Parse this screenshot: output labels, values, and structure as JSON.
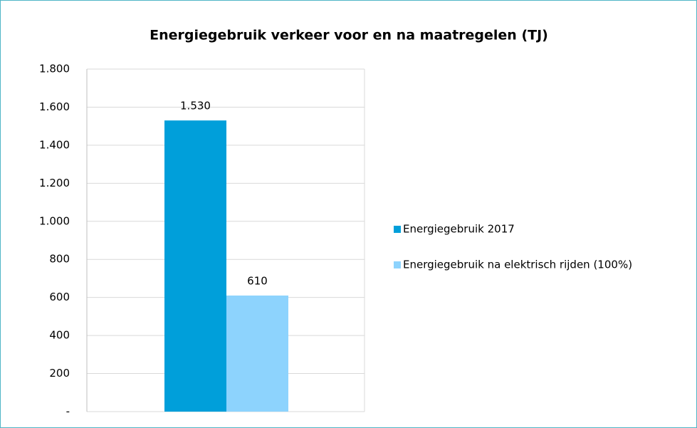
{
  "chart_data": {
    "type": "bar",
    "title": "Energiegebruik verkeer voor en na maatregelen (TJ)",
    "categories": [
      null
    ],
    "series": [
      {
        "name": "Energiegebruik 2017",
        "color": "#009fda",
        "values": [
          1530
        ],
        "value_labels": [
          "1.530"
        ]
      },
      {
        "name": "Energiegebruik na elektrisch rijden (100%)",
        "color": "#8dd3fd",
        "values": [
          610
        ],
        "value_labels": [
          "610"
        ]
      }
    ],
    "ylim": [
      0,
      1800
    ],
    "yticks": [
      {
        "value": 0,
        "label": "-"
      },
      200,
      400,
      600,
      800,
      {
        "value": 1000,
        "label": "1.000"
      },
      {
        "value": 1200,
        "label": "1.200"
      },
      {
        "value": 1400,
        "label": "1.400"
      },
      {
        "value": 1600,
        "label": "1.600"
      },
      {
        "value": 1800,
        "label": "1.800"
      }
    ],
    "grid": true,
    "legend": "right"
  }
}
